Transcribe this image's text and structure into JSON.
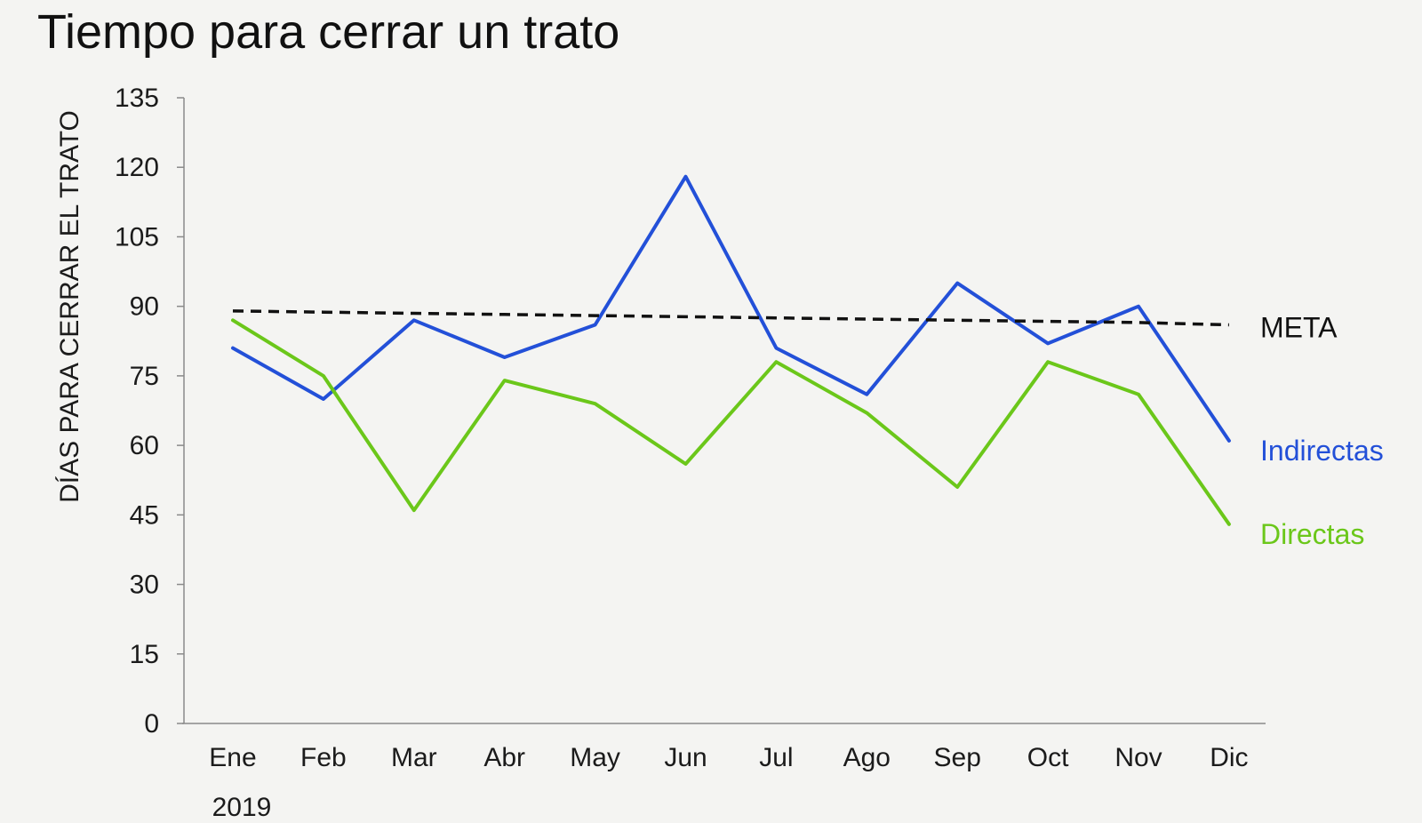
{
  "chart_data": {
    "type": "line",
    "title": "Tiempo para cerrar un trato",
    "ylabel": "DÍAS PARA CERRAR EL TRATO",
    "xlabel": "",
    "year_label": "2019",
    "categories": [
      "Ene",
      "Feb",
      "Mar",
      "Abr",
      "May",
      "Jun",
      "Jul",
      "Ago",
      "Sep",
      "Oct",
      "Nov",
      "Dic"
    ],
    "ylim": [
      0,
      135
    ],
    "yticks": [
      0,
      15,
      30,
      45,
      60,
      75,
      90,
      105,
      120,
      135
    ],
    "grid": false,
    "legend": "inline-right",
    "series": [
      {
        "name": "Indirectas",
        "color": "#2350d8",
        "style": "solid",
        "values": [
          81,
          70,
          87,
          79,
          86,
          118,
          81,
          71,
          95,
          82,
          90,
          61
        ]
      },
      {
        "name": "Directas",
        "color": "#6bc71a",
        "style": "solid",
        "values": [
          87,
          75,
          46,
          74,
          69,
          56,
          78,
          67,
          51,
          78,
          71,
          43
        ]
      },
      {
        "name": "META",
        "color": "#111111",
        "style": "dashed",
        "values": [
          89,
          88.75,
          88.5,
          88.25,
          88,
          87.75,
          87.5,
          87.25,
          87,
          86.75,
          86.5,
          86
        ]
      }
    ]
  }
}
